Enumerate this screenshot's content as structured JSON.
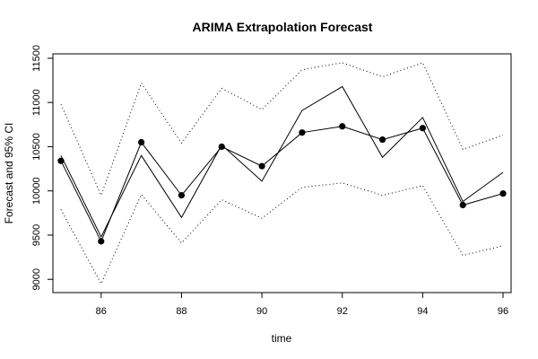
{
  "chart_data": {
    "type": "line",
    "title": "ARIMA Extrapolation Forecast",
    "xlabel": "time",
    "ylabel": "Forecast and 95% CI",
    "xlim": [
      84.8,
      96.2
    ],
    "ylim": [
      8850,
      11550
    ],
    "x_ticks": [
      86,
      88,
      90,
      92,
      94,
      96
    ],
    "y_ticks": [
      9000,
      9500,
      10000,
      10500,
      11000,
      11500
    ],
    "grid": false,
    "x": [
      85,
      86,
      87,
      88,
      89,
      90,
      91,
      92,
      93,
      94,
      95,
      96
    ],
    "series": [
      {
        "style": "solid-line",
        "values": [
          10400,
          9480,
          10400,
          9700,
          10520,
          10110,
          10910,
          11180,
          10380,
          10830,
          9880,
          10210
        ]
      },
      {
        "style": "points-line",
        "values": [
          10340,
          9430,
          10550,
          9950,
          10500,
          10280,
          10660,
          10730,
          10580,
          10710,
          9840,
          9970
        ]
      },
      {
        "style": "dotted-line",
        "values": [
          9790,
          8950,
          9960,
          9410,
          9900,
          9690,
          10040,
          10090,
          9950,
          10060,
          9270,
          9380
        ]
      },
      {
        "style": "dotted-line",
        "values": [
          10980,
          9950,
          11220,
          10540,
          11160,
          10920,
          11370,
          11450,
          11290,
          11450,
          10470,
          10630
        ]
      }
    ]
  }
}
